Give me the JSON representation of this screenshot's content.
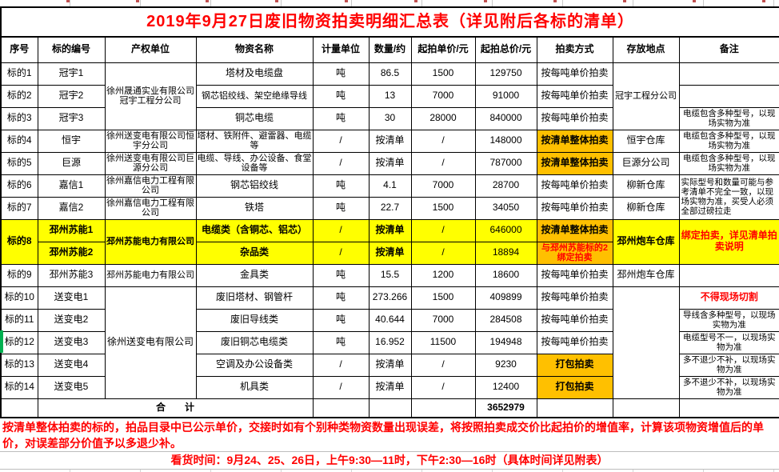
{
  "title": "2019年9月27日废旧物资拍卖明细汇总表（详见附后各标的清单）",
  "colors": {
    "yellow": "#FFFF00",
    "orange": "#FFC000",
    "red": "#FF0000",
    "green": "#00B050"
  },
  "columns": [
    "序号",
    "标的编号",
    "产权单位",
    "物资名称",
    "计量单位",
    "数量/约",
    "起拍单价/元",
    "起拍总价/元",
    "拍卖方式",
    "存放地点",
    "备注"
  ],
  "rows": [
    [
      "标的1",
      "冠宇1",
      {
        "t": "徐州晟通实业有限公司冠宇工程分公司",
        "rs": 3,
        "sz": "s"
      },
      "塔材及电缆盘",
      "吨",
      "86.5",
      "1500",
      "129750",
      "按每吨单价拍卖",
      {
        "t": "冠宇工程分公司",
        "rs": 3,
        "sz": "s"
      },
      ""
    ],
    [
      "标的2",
      "冠宇2",
      null,
      {
        "t": "钢芯铝绞线、架空绝缘导线",
        "sz": "s"
      },
      "吨",
      "13",
      "7000",
      "91000",
      "按每吨单价拍卖",
      null,
      ""
    ],
    [
      "标的3",
      "冠宇3",
      null,
      "铜芯电缆",
      "吨",
      "30",
      "28000",
      "840000",
      "按每吨单价拍卖",
      null,
      {
        "t": "电缆包含多种型号，以现场实物为准",
        "sz": "xs"
      }
    ],
    [
      "标的4",
      "恒宇",
      {
        "t": "徐州送变电有限公司恒宇分公司",
        "sz": "s"
      },
      {
        "t": "塔材、铁附件、避雷器、电缆等",
        "sz": "s"
      },
      "/",
      "按清单",
      "/",
      "148000",
      {
        "t": "按清单整体拍卖",
        "bg": "orange",
        "b": 1
      },
      "恒宇仓库",
      {
        "t": "电缆包含多种型号，以现场实物为准",
        "sz": "xs"
      }
    ],
    [
      "标的5",
      "巨源",
      {
        "t": "徐州送变电有限公司巨源分公司",
        "sz": "s"
      },
      {
        "t": "电缆、导线、办公设备、食堂设备等",
        "sz": "s"
      },
      "/",
      "按清单",
      "/",
      "787000",
      {
        "t": "按清单整体拍卖",
        "bg": "orange",
        "b": 1
      },
      "巨源分公司",
      {
        "t": "电缆包含多种型号，以现场实物为准",
        "sz": "xs"
      }
    ],
    [
      "标的6",
      "嘉信1",
      {
        "t": "徐州嘉信电力工程有限公司",
        "sz": "s"
      },
      "钢芯铝绞线",
      "吨",
      "4.1",
      "7000",
      "28700",
      "按每吨单价拍卖",
      "柳新仓库",
      {
        "t": "实际型号和数量可能与参考清单不完全一致，以现场实物为准，买受人必须全部过磅拉走",
        "rs": 2,
        "sz": "xs",
        "al": "left"
      }
    ],
    [
      "标的7",
      "嘉信2",
      {
        "t": "徐州嘉信电力工程有限公司",
        "sz": "s"
      },
      "铁塔",
      "吨",
      "22.7",
      "1500",
      "34050",
      "按每吨单价拍卖",
      "柳新仓库",
      null
    ],
    [
      {
        "t": "标的8",
        "rs": 2,
        "bg": "yellow",
        "b": 1
      },
      {
        "t": "邳州苏能1",
        "bg": "yellow",
        "b": 1
      },
      {
        "t": "邳州苏能电力有限公司",
        "rs": 2,
        "bg": "yellow",
        "b": 1,
        "sz": "s"
      },
      {
        "t": "电缆类（含铜芯、铝芯）",
        "bg": "yellow",
        "b": 1
      },
      {
        "t": "/",
        "bg": "yellow"
      },
      {
        "t": "按清单",
        "bg": "yellow",
        "b": 1
      },
      {
        "t": "/",
        "bg": "yellow"
      },
      {
        "t": "646000",
        "bg": "yellow"
      },
      {
        "t": "按清单整体拍卖",
        "bg": "orange",
        "b": 1
      },
      {
        "t": "邳州炮车仓库",
        "rs": 2,
        "bg": "yellow",
        "b": 1
      },
      {
        "t": "绑定拍卖，详见清单拍卖说明",
        "rs": 2,
        "bg": "yellow",
        "fg": "red",
        "b": 1
      }
    ],
    [
      null,
      {
        "t": "邳州苏能2",
        "bg": "yellow",
        "b": 1
      },
      null,
      {
        "t": "杂品类",
        "bg": "yellow",
        "b": 1
      },
      {
        "t": "/",
        "bg": "yellow"
      },
      {
        "t": "按清单",
        "bg": "yellow",
        "b": 1
      },
      {
        "t": "/",
        "bg": "yellow"
      },
      {
        "t": "18894",
        "bg": "yellow"
      },
      {
        "t": "与邳州苏能标的2绑定拍卖",
        "bg": "orange",
        "fg": "red",
        "b": 1,
        "sz": "s"
      },
      null,
      null
    ],
    [
      "标的9",
      "邳州苏能3",
      {
        "t": "邳州苏能电力有限公司",
        "sz": "s"
      },
      "金具类",
      "吨",
      "15.5",
      "1200",
      "18600",
      "按每吨单价拍卖",
      "邳州炮车仓库",
      ""
    ],
    [
      "标的10",
      "送变电1",
      {
        "t": "徐州送变电有限公司",
        "rs": 5
      },
      "废旧塔材、钢管杆",
      "吨",
      "273.266",
      "1500",
      "409899",
      "按每吨单价拍卖",
      {
        "t": "",
        "rs": 5
      },
      {
        "t": "不得现场切割",
        "fg": "red",
        "b": 1
      }
    ],
    [
      "标的11",
      "送变电2",
      null,
      "废旧导线类",
      "吨",
      "40.644",
      "7000",
      "284508",
      "按每吨单价拍卖",
      null,
      {
        "t": "导线含多种型号，以现场实物为准",
        "sz": "xs"
      }
    ],
    [
      "标的12",
      "送变电3",
      null,
      "废旧铜芯电缆类",
      "吨",
      "16.952",
      "11500",
      "194948",
      "按每吨单价拍卖",
      null,
      {
        "t": "电缆型号不一，以现场实物为准",
        "sz": "xs"
      }
    ],
    [
      "标的13",
      "送变电4",
      null,
      "空调及办公设备类",
      "/",
      "按清单",
      "/",
      "9230",
      {
        "t": "打包拍卖",
        "bg": "orange",
        "b": 1
      },
      null,
      {
        "t": "多不退少不补，以现场实物为准",
        "sz": "xs"
      }
    ],
    [
      "标的14",
      "送变电5",
      null,
      "机具类",
      "/",
      "按清单",
      "/",
      "12400",
      {
        "t": "打包拍卖",
        "bg": "orange",
        "b": 1
      },
      null,
      {
        "t": "多不退少不补，以现场实物为准",
        "sz": "xs"
      }
    ]
  ],
  "total_row": [
    "",
    {
      "t": "合　　计",
      "cs": 3,
      "b": 1
    },
    "",
    "",
    "",
    {
      "t": "3652979",
      "b": 1
    },
    "",
    "",
    ""
  ],
  "footer": {
    "paragraph": "按清单整体拍卖的标的，拍品目录中已公示单价，交接时如有个别种类物资数量出现误差，将按照拍卖成交价比起拍价的增值率，计算该项物资增值后的单价，对误差部分价值予以多退少补。",
    "viewing_time": "看货时间：9月24、25、26日，上午9:30—11时，下午2:30—16时（具体时间详见附表）"
  }
}
